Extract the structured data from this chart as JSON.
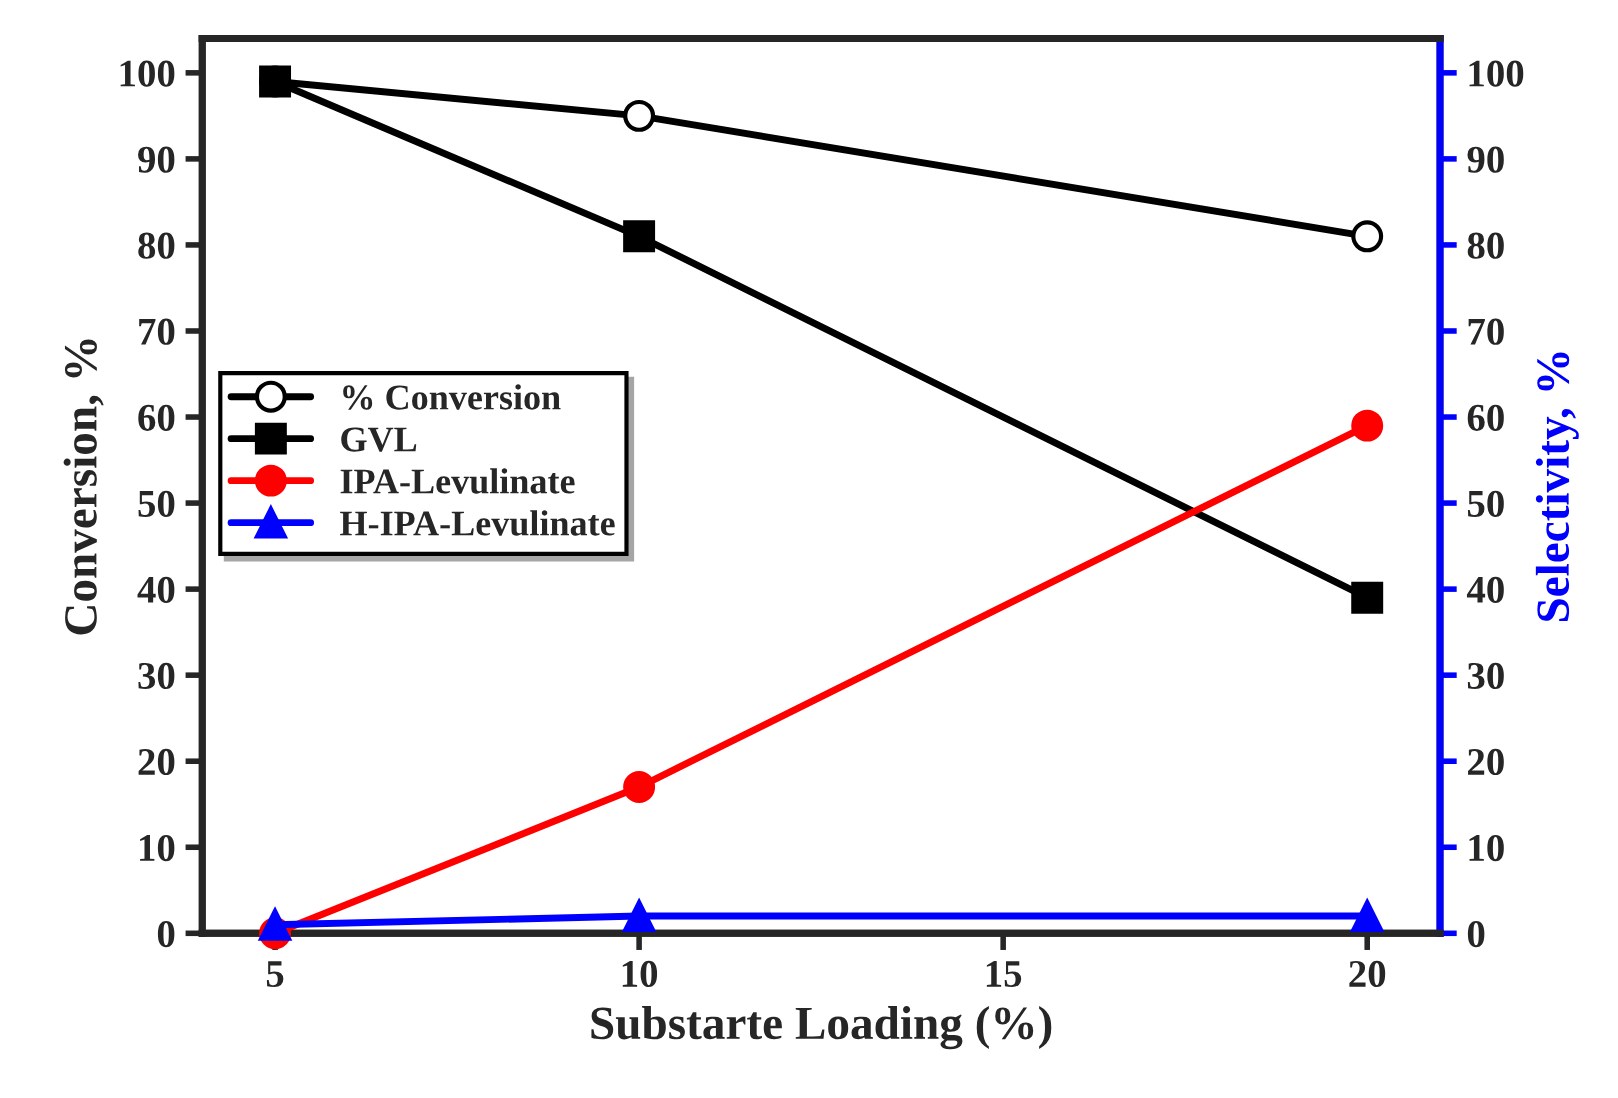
{
  "chart_data": {
    "type": "line",
    "xlabel": "Substarte Loading (%)",
    "ylabel": "Conversion, %",
    "y2label": "Selectivity, %",
    "x": [
      5,
      10,
      20
    ],
    "xlim": [
      4,
      21
    ],
    "xticks": [
      5,
      10,
      15,
      20
    ],
    "ylim": [
      0,
      104
    ],
    "yticks": [
      0,
      10,
      20,
      30,
      40,
      50,
      60,
      70,
      80,
      90,
      100
    ],
    "y2lim": [
      0,
      104
    ],
    "y2ticks": [
      0,
      10,
      20,
      30,
      40,
      50,
      60,
      70,
      80,
      90,
      100
    ],
    "grid": false,
    "legend": "center left",
    "line_style": "solid",
    "series": [
      {
        "name": "% Conversion",
        "color": "#000000",
        "values": [
          99,
          95,
          81
        ],
        "marker": "circle"
      },
      {
        "name": "GVL",
        "color": "#000000",
        "values": [
          99,
          81,
          39
        ],
        "marker": "square",
        "axis": "y2"
      },
      {
        "name": "IPA-Levulinate",
        "color": "#ff0000",
        "values": [
          0,
          17,
          59
        ],
        "marker": "circle",
        "axis": "y2"
      },
      {
        "name": "H-IPA-Levulinate",
        "color": "#0000ff",
        "values": [
          1,
          2,
          2
        ],
        "marker": "triangle",
        "axis": "y2"
      }
    ]
  }
}
